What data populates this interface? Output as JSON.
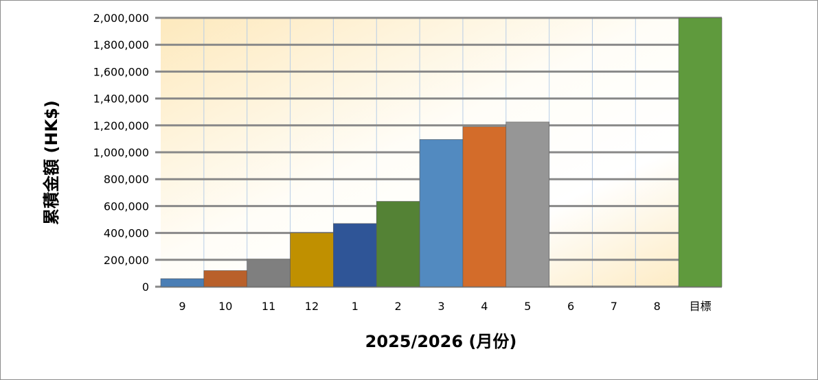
{
  "chart_data": {
    "type": "bar",
    "categories": [
      "9",
      "10",
      "11",
      "12",
      "1",
      "2",
      "3",
      "4",
      "5",
      "6",
      "7",
      "8",
      "目標"
    ],
    "values": [
      60000,
      120000,
      205000,
      400000,
      470000,
      635000,
      1095000,
      1190000,
      1225000,
      5000,
      5000,
      5000,
      2000000
    ],
    "colors": [
      "#4a7eb5",
      "#b9602a",
      "#7f7f7f",
      "#c09000",
      "#2f5597",
      "#548235",
      "#528ac0",
      "#d36c2a",
      "#969696",
      "#cfcfcf",
      "#cfcfcf",
      "#cfcfcf",
      "#5f9a3d"
    ],
    "title": "",
    "xlabel": "2025/2026 (月份)",
    "ylabel": "累積金額 (HK$)",
    "ylim": [
      0,
      2000000
    ],
    "yticks": [
      "0",
      "200,000",
      "400,000",
      "600,000",
      "800,000",
      "1,000,000",
      "1,200,000",
      "1,400,000",
      "1,600,000",
      "1,800,000",
      "2,000,000"
    ],
    "grid": true,
    "legend": "none"
  }
}
